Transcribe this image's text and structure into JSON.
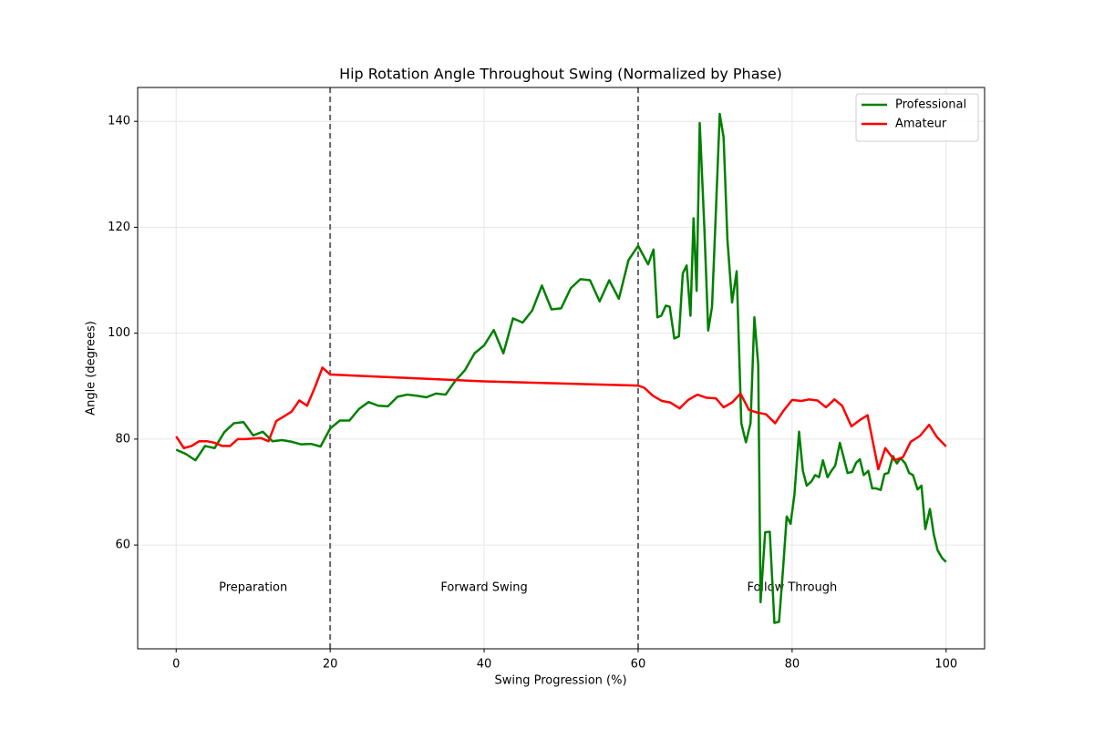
{
  "chart_data": {
    "type": "line",
    "title": "Hip Rotation Angle Throughout Swing (Normalized by Phase)",
    "x_label": "Swing Progression (%)",
    "y_label": "Angle (degrees)",
    "xlim": [
      -5,
      105
    ],
    "ylim": [
      40.4,
      146.4
    ],
    "xticks": [
      0,
      20,
      40,
      60,
      80,
      100
    ],
    "yticks": [
      60,
      80,
      100,
      120,
      140
    ],
    "grid": true,
    "legend": "upper right",
    "phases": [
      {
        "label": "Preparation",
        "start": 0,
        "end": 20
      },
      {
        "label": "Forward Swing",
        "start": 20,
        "end": 60
      },
      {
        "label": "Follow Through",
        "start": 60,
        "end": 100
      }
    ],
    "series": [
      {
        "name": "Professional",
        "color": "#008000",
        "x": [
          0,
          1.25,
          2.5,
          3.75,
          5,
          6.25,
          7.5,
          8.75,
          10,
          11.25,
          12.5,
          13.75,
          15,
          16.25,
          17.5,
          18.75,
          20,
          21.25,
          22.5,
          23.75,
          25,
          26.25,
          27.5,
          28.75,
          30,
          31.25,
          32.5,
          33.75,
          35,
          36.25,
          37.5,
          38.75,
          40,
          41.25,
          42.5,
          43.75,
          45,
          46.25,
          47.5,
          48.75,
          50,
          51.25,
          52.5,
          53.75,
          55,
          56.25,
          57.5,
          58.75,
          60,
          61.3,
          62,
          62.5,
          63,
          63.6,
          64.1,
          64.7,
          65.3,
          65.8,
          66.3,
          66.8,
          67.2,
          67.6,
          68,
          68.6,
          69.1,
          69.6,
          70.1,
          70.6,
          71.1,
          71.6,
          72.2,
          72.8,
          73.4,
          74,
          74.6,
          75.1,
          75.6,
          75.9,
          76.5,
          77.1,
          77.7,
          78.3,
          78.8,
          79.3,
          79.8,
          80.3,
          80.9,
          81.4,
          81.9,
          82.5,
          83,
          83.5,
          84,
          84.6,
          85.1,
          85.6,
          86.2,
          86.7,
          87.2,
          87.8,
          88.3,
          88.8,
          89.3,
          89.9,
          90.4,
          90.9,
          91.5,
          92,
          92.5,
          93.1,
          93.6,
          94.1,
          94.7,
          95.2,
          95.7,
          96.3,
          96.8,
          97.3,
          97.9,
          98.4,
          98.9,
          99.5,
          100
        ],
        "values": [
          78,
          77.2,
          76,
          78.7,
          78.3,
          81.3,
          83,
          83.2,
          80.7,
          81.4,
          79.6,
          79.8,
          79.5,
          79,
          79.1,
          78.6,
          82,
          83.5,
          83.5,
          85.7,
          87,
          86.3,
          86.2,
          88,
          88.4,
          88.2,
          87.9,
          88.6,
          88.4,
          91,
          93,
          96.2,
          97.7,
          100.6,
          96.2,
          102.8,
          102,
          104.3,
          109,
          104.5,
          104.7,
          108.5,
          110.2,
          110,
          106,
          110,
          106.5,
          113.8,
          116.5,
          113,
          115.8,
          103,
          103.3,
          105.2,
          105,
          99,
          99.4,
          111.3,
          112.8,
          103.3,
          121.7,
          108,
          139.7,
          120,
          100.5,
          105,
          123,
          141.4,
          137,
          117.6,
          105.8,
          111.7,
          83,
          79.4,
          83,
          103,
          94,
          49.2,
          62.4,
          62.5,
          45.3,
          45.5,
          55,
          65.4,
          64,
          69.5,
          81.4,
          74,
          71.2,
          72,
          73.2,
          72.8,
          76,
          72.8,
          74,
          75,
          79.3,
          76.5,
          73.6,
          73.8,
          75.5,
          76.2,
          73.2,
          74,
          70.7,
          70.7,
          70.4,
          73.4,
          73.6,
          76.8,
          75.4,
          76.4,
          75.4,
          73.6,
          73.2,
          70.5,
          71.2,
          63,
          66.8,
          62,
          59,
          57.5,
          56.8
        ]
      },
      {
        "name": "Amateur",
        "color": "#ff0000",
        "x": [
          0,
          1,
          2,
          3,
          4,
          5,
          6,
          7,
          8,
          9,
          10,
          11,
          12,
          13,
          14,
          15,
          16,
          17,
          18,
          19,
          20,
          40,
          60,
          60.8,
          61.9,
          63.1,
          64.2,
          65.4,
          66.5,
          67.7,
          68.9,
          70.1,
          71.1,
          72.2,
          73.3,
          74.4,
          75.5,
          76.6,
          77.8,
          78.8,
          80,
          81.2,
          82.2,
          83.3,
          84.4,
          85.5,
          86.5,
          87.7,
          88.8,
          89.8,
          91.2,
          92.1,
          93.3,
          94.4,
          95.4,
          96.6,
          97.8,
          98.8,
          100
        ],
        "values": [
          80.5,
          78.3,
          78.7,
          79.6,
          79.6,
          79.3,
          78.7,
          78.7,
          80,
          80,
          80.1,
          80.2,
          79.6,
          83.4,
          84.3,
          85.2,
          87.3,
          86.3,
          89.7,
          93.5,
          92.2,
          90.9,
          90.1,
          89.7,
          88.2,
          87.2,
          86.9,
          85.8,
          87.4,
          88.4,
          87.8,
          87.7,
          86,
          86.9,
          88.6,
          85.5,
          85,
          84.7,
          83,
          85.2,
          87.4,
          87.2,
          87.5,
          87.3,
          86,
          87.5,
          86.3,
          82.4,
          83.6,
          84.5,
          74.3,
          78.3,
          76,
          76.6,
          79.5,
          80.6,
          82.7,
          80.4,
          78.6
        ]
      }
    ]
  }
}
